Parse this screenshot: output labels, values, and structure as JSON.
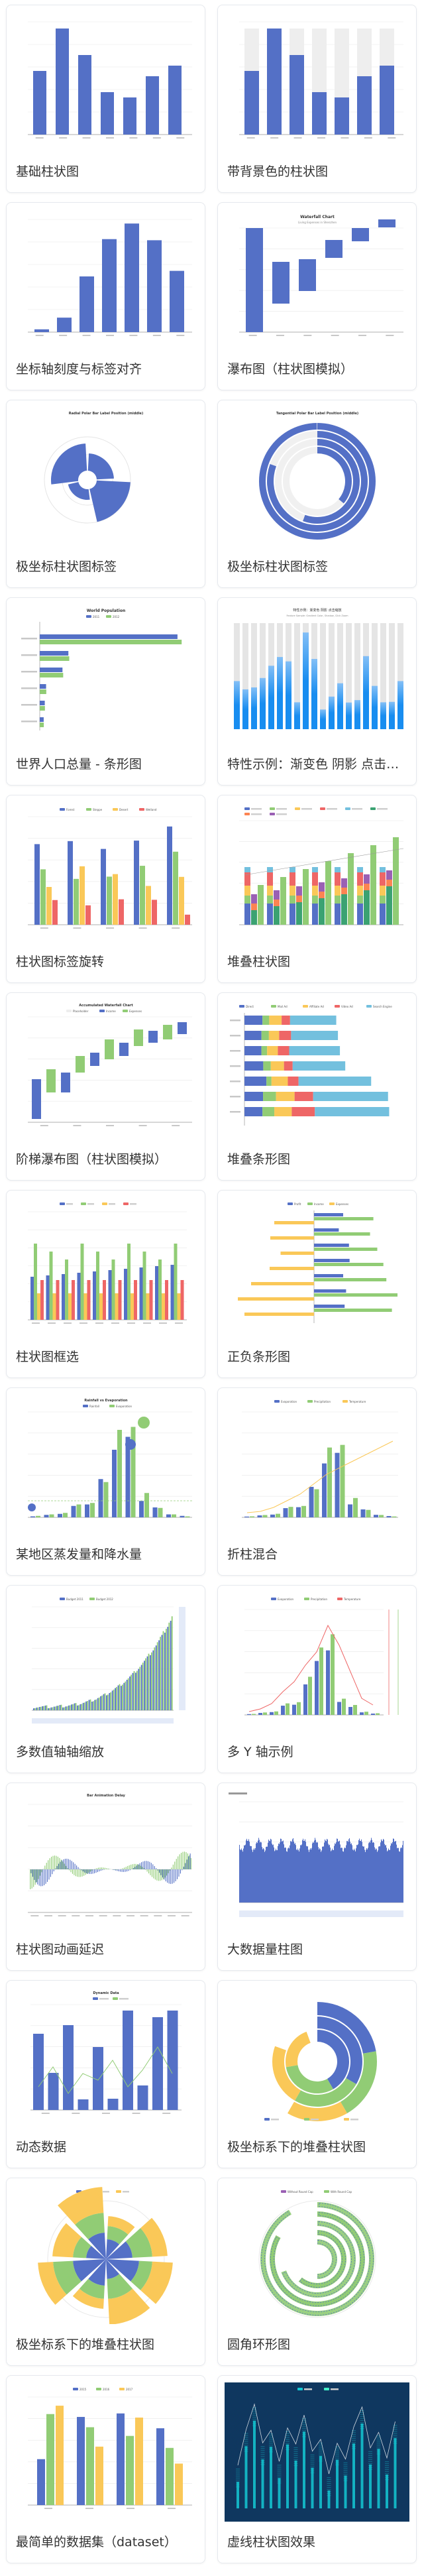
{
  "colors": {
    "primary": "#5470c6",
    "green": "#91cc75",
    "yellow": "#fac858",
    "red": "#ee6666",
    "cyan": "#73c0de",
    "teal": "#3ba272",
    "orange": "#fc8452",
    "purple": "#9a60b4"
  },
  "cards": [
    {
      "title": "基础柱状图",
      "thumb": "basic-bar",
      "texts": {}
    },
    {
      "title": "带背景色的柱状图",
      "thumb": "bar-background",
      "texts": {}
    },
    {
      "title": "坐标轴刻度与标签对齐",
      "thumb": "axis-align",
      "texts": {}
    },
    {
      "title": "瀑布图（柱状图模拟）",
      "thumb": "waterfall",
      "texts": {
        "t1": "Waterfall Chart",
        "t2": "Living Expenses in Shenzhen"
      }
    },
    {
      "title": "极坐标柱状图标签",
      "thumb": "radial-polar-label",
      "texts": {
        "t1": "Radial Polar Bar Label Position (middle)"
      }
    },
    {
      "title": "极坐标柱状图标签",
      "thumb": "tangential-polar-label",
      "texts": {
        "t1": "Tangential Polar Bar Label Position (middle)"
      }
    },
    {
      "title": "世界人口总量 - 条形图",
      "thumb": "world-population",
      "texts": {
        "t1": "World Population",
        "l1": "2011",
        "l2": "2012"
      }
    },
    {
      "title": "特性示例：渐变色 阴影 点击…",
      "thumb": "gradient-bar",
      "texts": {
        "t1": "特性示例：渐变色 阴影 点击缩放",
        "t2": "Feature Sample: Gradient Color, Shadow, Click Zoom"
      }
    },
    {
      "title": "柱状图标签旋转",
      "thumb": "label-rotation",
      "texts": {
        "l1": "Forest",
        "l2": "Steppe",
        "l3": "Desert",
        "l4": "Wetland"
      }
    },
    {
      "title": "堆叠柱状图",
      "thumb": "stacked-bar",
      "texts": {}
    },
    {
      "title": "阶梯瀑布图（柱状图模拟）",
      "thumb": "accumulated-waterfall",
      "texts": {
        "t1": "Accumulated Waterfall Chart",
        "l1": "Placeholder",
        "l2": "Income",
        "l3": "Expenses"
      }
    },
    {
      "title": "堆叠条形图",
      "thumb": "stacked-horizontal",
      "texts": {
        "l1": "Direct",
        "l2": "Mail Ad",
        "l3": "Affiliate Ad",
        "l4": "Video Ad",
        "l5": "Search Engine"
      }
    },
    {
      "title": "柱状图框选",
      "thumb": "brush-select",
      "texts": {}
    },
    {
      "title": "正负条形图",
      "thumb": "positive-negative",
      "texts": {
        "l1": "Profit",
        "l2": "Income",
        "l3": "Expenses"
      }
    },
    {
      "title": "某地区蒸发量和降水量",
      "thumb": "rainfall-evaporation",
      "texts": {
        "t1": "Rainfall vs Evaporation",
        "l1": "Rainfall",
        "l2": "Evaporation"
      }
    },
    {
      "title": "折柱混合",
      "thumb": "mix-line-bar",
      "texts": {
        "l1": "Evaporation",
        "l2": "Precipitation",
        "l3": "Temperature"
      }
    },
    {
      "title": "多数值轴轴缩放",
      "thumb": "multi-axis-zoom",
      "texts": {
        "l1": "Budget 2011",
        "l2": "Budget 2012"
      }
    },
    {
      "title": "多 Y 轴示例",
      "thumb": "multi-y-axis",
      "texts": {
        "l1": "Evaporation",
        "l2": "Precipitation",
        "l3": "Temperature"
      }
    },
    {
      "title": "柱状图动画延迟",
      "thumb": "animation-delay",
      "texts": {
        "t1": "Bar Animation Delay"
      }
    },
    {
      "title": "大数据量柱图",
      "thumb": "large-scale",
      "texts": {}
    },
    {
      "title": "动态数据",
      "thumb": "dynamic-data",
      "texts": {
        "t1": "Dynamic Data"
      }
    },
    {
      "title": "极坐标系下的堆叠柱状图",
      "thumb": "polar-stacked-radial",
      "texts": {}
    },
    {
      "title": "极坐标系下的堆叠柱状图",
      "thumb": "polar-stacked-angle",
      "texts": {}
    },
    {
      "title": "圆角环形图",
      "thumb": "rounded-ring",
      "texts": {
        "l1": "Without Round Cap",
        "l2": "With Round Cap"
      }
    },
    {
      "title": "最简单的数据集（dataset）",
      "thumb": "dataset-simple",
      "texts": {
        "l1": "2015",
        "l2": "2016",
        "l3": "2017"
      }
    },
    {
      "title": "虚线柱状图效果",
      "thumb": "pictorial-dotted",
      "texts": {}
    }
  ]
}
